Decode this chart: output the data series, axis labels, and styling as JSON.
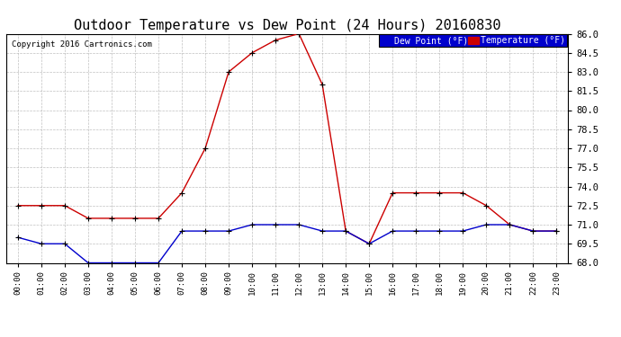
{
  "title": "Outdoor Temperature vs Dew Point (24 Hours) 20160830",
  "copyright": "Copyright 2016 Cartronics.com",
  "hours": [
    "00:00",
    "01:00",
    "02:00",
    "03:00",
    "04:00",
    "05:00",
    "06:00",
    "07:00",
    "08:00",
    "09:00",
    "10:00",
    "11:00",
    "12:00",
    "13:00",
    "14:00",
    "15:00",
    "16:00",
    "17:00",
    "18:00",
    "19:00",
    "20:00",
    "21:00",
    "22:00",
    "23:00"
  ],
  "temperature": [
    72.5,
    72.5,
    72.5,
    71.5,
    71.5,
    71.5,
    71.5,
    73.5,
    77.0,
    83.0,
    84.5,
    85.5,
    86.0,
    82.0,
    70.5,
    69.5,
    73.5,
    73.5,
    73.5,
    73.5,
    72.5,
    71.0,
    70.5,
    70.5
  ],
  "dew_point": [
    70.0,
    69.5,
    69.5,
    68.0,
    68.0,
    68.0,
    68.0,
    70.5,
    70.5,
    70.5,
    71.0,
    71.0,
    71.0,
    70.5,
    70.5,
    69.5,
    70.5,
    70.5,
    70.5,
    70.5,
    71.0,
    71.0,
    70.5,
    70.5
  ],
  "ylim": [
    68.0,
    86.0
  ],
  "ytick_step": 1.5,
  "temp_color": "#cc0000",
  "dew_color": "#0000cc",
  "bg_color": "#ffffff",
  "plot_bg_color": "#ffffff",
  "grid_color": "#b0b0b0",
  "title_fontsize": 11,
  "legend_dew_bg": "#0000cc",
  "legend_temp_bg": "#cc0000"
}
